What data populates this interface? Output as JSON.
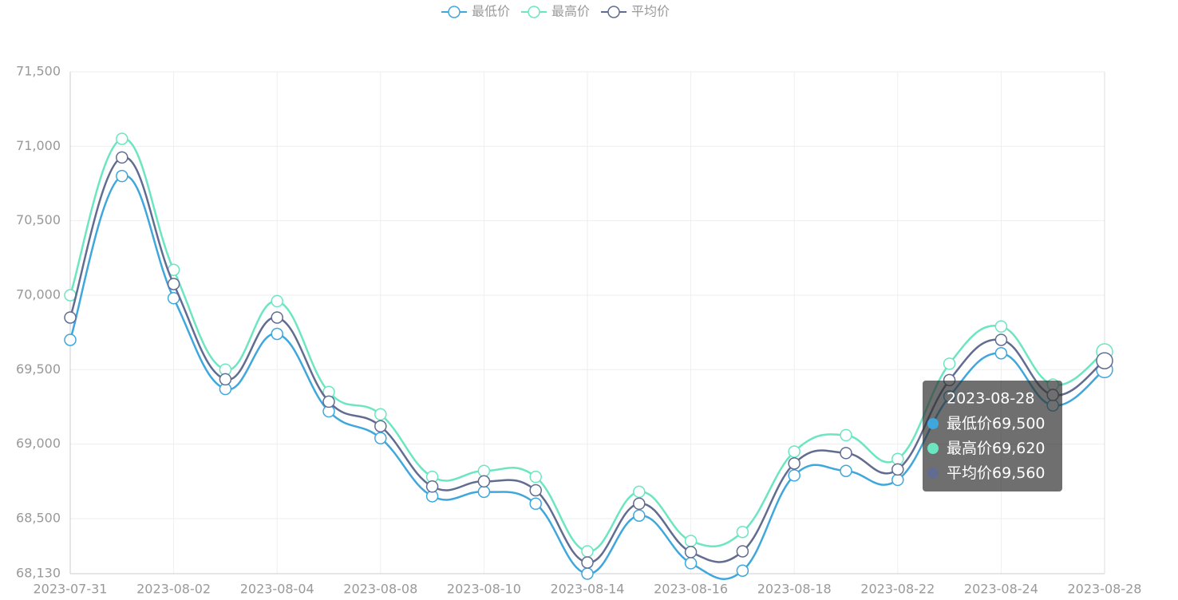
{
  "chart_data": {
    "type": "line",
    "categories": [
      "2023-07-31",
      null,
      "2023-08-02",
      null,
      "2023-08-04",
      null,
      "2023-08-08",
      null,
      "2023-08-10",
      null,
      "2023-08-14",
      null,
      "2023-08-16",
      null,
      "2023-08-18",
      null,
      "2023-08-22",
      null,
      "2023-08-24",
      null,
      "2023-08-28"
    ],
    "series": [
      {
        "name": "最低价",
        "color": "#3fa7dc",
        "values": [
          69700,
          70800,
          69980,
          69370,
          69740,
          69220,
          69040,
          68650,
          68680,
          68600,
          68130,
          68520,
          68200,
          68150,
          68790,
          68820,
          68760,
          69320,
          69610,
          69260,
          69500
        ],
        "value_labels": [
          null,
          null,
          null,
          null,
          null,
          null,
          null,
          null,
          null,
          null,
          null,
          null,
          null,
          null,
          null,
          null,
          null,
          null,
          null,
          null,
          "69,500"
        ]
      },
      {
        "name": "最高价",
        "color": "#6be6c1",
        "values": [
          70000,
          71050,
          70170,
          69500,
          69960,
          69350,
          69200,
          68780,
          68820,
          68780,
          68280,
          68680,
          68350,
          68410,
          68950,
          69060,
          68900,
          69540,
          69790,
          69400,
          69620
        ],
        "value_labels": [
          null,
          null,
          null,
          null,
          null,
          null,
          null,
          null,
          null,
          null,
          null,
          null,
          null,
          null,
          null,
          null,
          null,
          null,
          null,
          null,
          "69,620"
        ]
      },
      {
        "name": "平均价",
        "color": "#626c91",
        "values": [
          69850,
          70925,
          70075,
          69435,
          69850,
          69285,
          69120,
          68715,
          68750,
          68690,
          68205,
          68600,
          68275,
          68280,
          68870,
          68940,
          68830,
          69430,
          69700,
          69330,
          69560
        ],
        "value_labels": [
          null,
          null,
          null,
          null,
          null,
          null,
          null,
          null,
          null,
          null,
          null,
          null,
          null,
          null,
          null,
          null,
          null,
          null,
          null,
          null,
          "69,560"
        ]
      }
    ],
    "ylim": [
      68130,
      71500
    ],
    "yticks": [
      {
        "value": 68130,
        "label": "68,130"
      },
      {
        "value": 68500,
        "label": "68,500"
      },
      {
        "value": 69000,
        "label": "69,000"
      },
      {
        "value": 69500,
        "label": "69,500"
      },
      {
        "value": 70000,
        "label": "70,000"
      },
      {
        "value": 70500,
        "label": "70,500"
      },
      {
        "value": 71000,
        "label": "71,000"
      },
      {
        "value": 71500,
        "label": "71,500"
      }
    ],
    "grid": true,
    "legend": "top",
    "tooltip_index": 20
  }
}
